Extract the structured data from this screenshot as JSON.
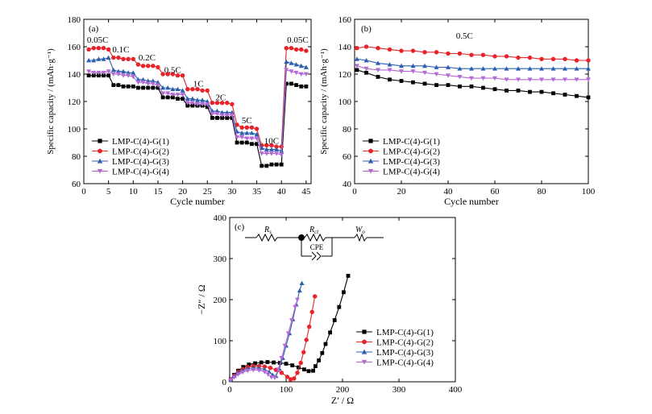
{
  "colors": {
    "g1": "#000000",
    "g2": "#e8242a",
    "g3": "#2a5fb0",
    "g4": "#b36ad3"
  },
  "legend_labels": [
    "LMP-C(4)-G(1)",
    "LMP-C(4)-G(2)",
    "LMP-C(4)-G(3)",
    "LMP-C(4)-G(4)"
  ],
  "chart_data": [
    {
      "id": "a",
      "type": "line",
      "panel_label": "(a)",
      "xlabel": "Cycle number",
      "ylabel": "Specific capacity / (mAh·g⁻¹)",
      "xlim": [
        0,
        46
      ],
      "ylim": [
        60,
        180
      ],
      "xticks": [
        0,
        5,
        10,
        15,
        20,
        25,
        30,
        35,
        40,
        45
      ],
      "yticks": [
        60,
        80,
        100,
        120,
        140,
        160,
        180
      ],
      "legend": "lower-left",
      "rate_labels": [
        {
          "text": "0.05C",
          "x": 2.8,
          "y": 163
        },
        {
          "text": "0.1C",
          "x": 7.5,
          "y": 156
        },
        {
          "text": "0.2C",
          "x": 12.8,
          "y": 150
        },
        {
          "text": "0.5C",
          "x": 18.0,
          "y": 141
        },
        {
          "text": "1C",
          "x": 23.2,
          "y": 131
        },
        {
          "text": "2C",
          "x": 27.7,
          "y": 121
        },
        {
          "text": "5C",
          "x": 33.0,
          "y": 104
        },
        {
          "text": "10C",
          "x": 38.0,
          "y": 89
        },
        {
          "text": "0.05C",
          "x": 43.3,
          "y": 163
        }
      ],
      "series": [
        {
          "name": "LMP-C(4)-G(1)",
          "color": "#000000",
          "marker": "square",
          "y": [
            139,
            139,
            139,
            139,
            139,
            132,
            132,
            131,
            131,
            131,
            130,
            130,
            130,
            130,
            130,
            123,
            123,
            123,
            122,
            122,
            117,
            117,
            117,
            117,
            116,
            108,
            108,
            108,
            108,
            108,
            90,
            90,
            90,
            89,
            89,
            73,
            73,
            74,
            74,
            74,
            133,
            133,
            132,
            131,
            131
          ]
        },
        {
          "name": "LMP-C(4)-G(2)",
          "color": "#e8242a",
          "marker": "circle",
          "y": [
            158,
            159,
            159,
            159,
            158,
            152,
            152,
            151,
            151,
            151,
            147,
            146,
            146,
            146,
            145,
            140,
            140,
            140,
            139,
            139,
            129,
            129,
            129,
            128,
            128,
            119,
            119,
            119,
            119,
            118,
            103,
            101,
            101,
            101,
            100,
            88,
            88,
            88,
            87,
            87,
            159,
            159,
            158,
            158,
            157
          ]
        },
        {
          "name": "LMP-C(4)-G(3)",
          "color": "#2a5fb0",
          "marker": "triangle-up",
          "y": [
            150,
            150,
            151,
            151,
            152,
            143,
            142,
            142,
            141,
            141,
            136,
            136,
            135,
            135,
            134,
            130,
            130,
            129,
            129,
            128,
            122,
            122,
            121,
            121,
            120,
            113,
            113,
            112,
            112,
            112,
            98,
            97,
            97,
            97,
            96,
            86,
            85,
            85,
            85,
            84,
            149,
            148,
            147,
            146,
            145
          ]
        },
        {
          "name": "LMP-C(4)-G(4)",
          "color": "#b36ad3",
          "marker": "triangle-down",
          "y": [
            142,
            141,
            141,
            141,
            142,
            140,
            140,
            139,
            139,
            138,
            134,
            134,
            133,
            133,
            132,
            126,
            126,
            125,
            125,
            125,
            119,
            119,
            118,
            118,
            118,
            111,
            111,
            110,
            110,
            110,
            94,
            94,
            93,
            93,
            93,
            82,
            82,
            82,
            82,
            81,
            143,
            142,
            141,
            140,
            140
          ]
        }
      ]
    },
    {
      "id": "b",
      "type": "line",
      "panel_label": "(b)",
      "xlabel": "Cycle number",
      "ylabel": "Specific capacity / (mAh·g⁻¹)",
      "xlim": [
        0,
        100
      ],
      "ylim": [
        40,
        160
      ],
      "xticks": [
        0,
        20,
        40,
        60,
        80,
        100
      ],
      "yticks": [
        40,
        60,
        80,
        100,
        120,
        140,
        160
      ],
      "legend": "lower-left",
      "annotation": {
        "text": "0.5C",
        "x": 47,
        "y": 146
      },
      "series": [
        {
          "name": "LMP-C(4)-G(1)",
          "color": "#000000",
          "marker": "square",
          "x": [
            1,
            5,
            10,
            15,
            20,
            25,
            30,
            35,
            40,
            45,
            50,
            55,
            60,
            65,
            70,
            75,
            80,
            85,
            90,
            95,
            100
          ],
          "y": [
            123,
            121,
            118,
            116,
            115,
            114,
            113,
            112,
            112,
            111,
            111,
            110,
            109,
            108,
            108,
            107,
            107,
            106,
            105,
            104,
            103
          ]
        },
        {
          "name": "LMP-C(4)-G(2)",
          "color": "#e8242a",
          "marker": "circle",
          "x": [
            1,
            5,
            10,
            15,
            20,
            25,
            30,
            35,
            40,
            45,
            50,
            55,
            60,
            65,
            70,
            75,
            80,
            85,
            90,
            95,
            100
          ],
          "y": [
            139,
            140,
            139,
            138,
            137,
            137,
            136,
            136,
            135,
            135,
            134,
            134,
            133,
            133,
            132,
            132,
            131,
            131,
            131,
            130,
            130
          ]
        },
        {
          "name": "LMP-C(4)-G(3)",
          "color": "#2a5fb0",
          "marker": "triangle-up",
          "x": [
            1,
            5,
            10,
            15,
            20,
            25,
            30,
            35,
            40,
            45,
            50,
            55,
            60,
            65,
            70,
            75,
            80,
            85,
            90,
            95,
            100
          ],
          "y": [
            131,
            130,
            128,
            127,
            126,
            126,
            126,
            125,
            125,
            124,
            124,
            124,
            124,
            124,
            124,
            124,
            124,
            124,
            124,
            124,
            124
          ]
        },
        {
          "name": "LMP-C(4)-G(4)",
          "color": "#b36ad3",
          "marker": "triangle-down",
          "x": [
            1,
            5,
            10,
            15,
            20,
            25,
            30,
            35,
            40,
            45,
            50,
            55,
            60,
            65,
            70,
            75,
            80,
            85,
            90,
            95,
            100
          ],
          "y": [
            126,
            124,
            123,
            123,
            122,
            122,
            121,
            120,
            119,
            118,
            117,
            117,
            117,
            116,
            116,
            116,
            116,
            116,
            116,
            116,
            116
          ]
        }
      ]
    },
    {
      "id": "c",
      "type": "line",
      "panel_label": "(c)",
      "xlabel": "Z′ / Ω",
      "ylabel": "−Z″ / Ω",
      "xlim": [
        0,
        400
      ],
      "ylim": [
        0,
        400
      ],
      "xticks": [
        0,
        100,
        200,
        300,
        400
      ],
      "yticks": [
        0,
        100,
        200,
        300,
        400
      ],
      "legend": "right",
      "circuit": {
        "r1": "R",
        "r1_sub": "s",
        "r2": "R",
        "r2_sub": "ct",
        "w": "W",
        "w_sub": "o",
        "cpe": "CPE"
      },
      "series": [
        {
          "name": "LMP-C(4)-G(1)",
          "color": "#000000",
          "marker": "square",
          "x": [
            2,
            8,
            15,
            24,
            34,
            45,
            56,
            67,
            78,
            89,
            100,
            111,
            122,
            132,
            140,
            148,
            152,
            158,
            164,
            170,
            178,
            186,
            194,
            202,
            210
          ],
          "y": [
            6,
            17,
            27,
            36,
            42,
            45,
            47,
            48,
            47,
            46,
            44,
            40,
            35,
            30,
            26,
            27,
            38,
            52,
            70,
            92,
            120,
            150,
            182,
            218,
            258
          ]
        },
        {
          "name": "LMP-C(4)-G(2)",
          "color": "#e8242a",
          "marker": "circle",
          "x": [
            2,
            8,
            15,
            23,
            32,
            42,
            52,
            62,
            72,
            82,
            92,
            102,
            108,
            114,
            120,
            126,
            131,
            136,
            141,
            146,
            151
          ],
          "y": [
            5,
            15,
            24,
            31,
            36,
            38,
            38,
            37,
            34,
            29,
            22,
            12,
            6,
            8,
            22,
            46,
            72,
            102,
            134,
            170,
            208
          ]
        },
        {
          "name": "LMP-C(4)-G(3)",
          "color": "#2a5fb0",
          "marker": "triangle-up",
          "x": [
            2,
            8,
            15,
            23,
            32,
            42,
            52,
            62,
            70,
            76,
            82,
            88,
            94,
            100,
            106,
            112,
            118,
            124,
            128
          ],
          "y": [
            5,
            14,
            22,
            28,
            32,
            34,
            33,
            30,
            24,
            17,
            14,
            32,
            58,
            88,
            118,
            152,
            188,
            222,
            240
          ]
        },
        {
          "name": "LMP-C(4)-G(4)",
          "color": "#b36ad3",
          "marker": "triangle-down",
          "x": [
            2,
            8,
            15,
            23,
            32,
            42,
            52,
            62,
            68,
            74,
            80,
            86,
            92,
            98,
            104,
            110,
            116,
            120
          ],
          "y": [
            4,
            11,
            18,
            23,
            27,
            29,
            28,
            24,
            18,
            11,
            10,
            30,
            58,
            88,
            118,
            150,
            182,
            200
          ]
        }
      ]
    }
  ]
}
